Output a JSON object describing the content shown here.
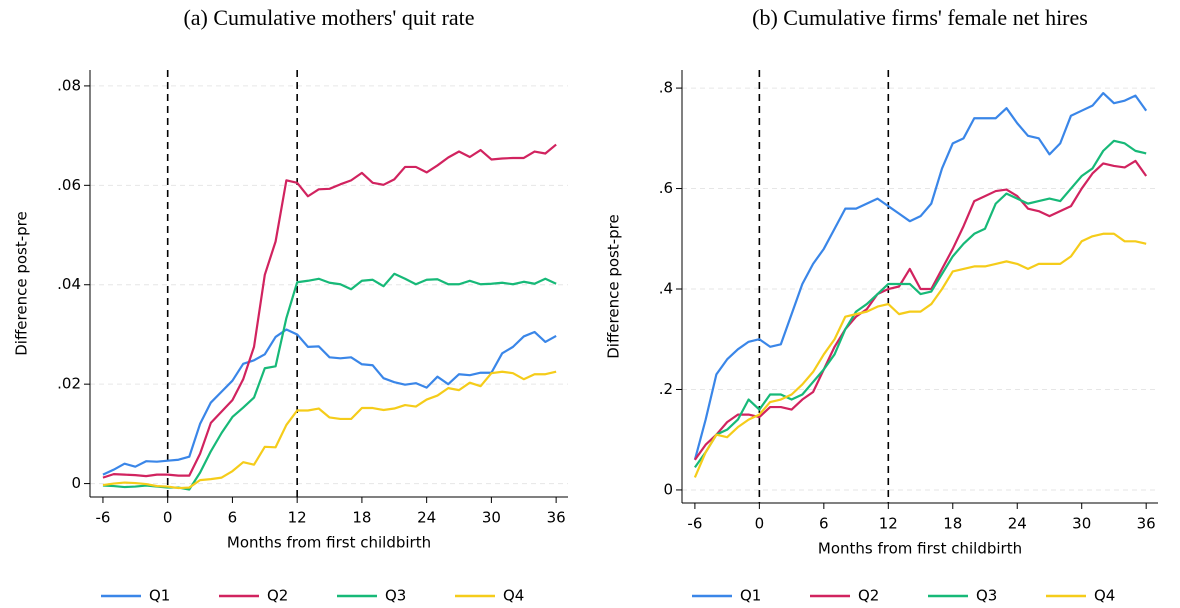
{
  "chart_data": [
    {
      "type": "line",
      "title": "(a) Cumulative mothers' quit rate",
      "x_label": "Months from first childbirth",
      "y_label": "Difference post-pre",
      "x": [
        -6,
        -5,
        -4,
        -3,
        -2,
        -1,
        0,
        1,
        2,
        3,
        4,
        5,
        6,
        7,
        8,
        9,
        10,
        11,
        12,
        13,
        14,
        15,
        16,
        17,
        18,
        19,
        20,
        21,
        22,
        23,
        24,
        25,
        26,
        27,
        28,
        29,
        30,
        31,
        32,
        33,
        34,
        35,
        36
      ],
      "series": [
        {
          "name": "Q1",
          "color": "#3a86e8",
          "values": [
            0.0018,
            0.0028,
            0.004,
            0.0034,
            0.0045,
            0.0044,
            0.0046,
            0.0048,
            0.0054,
            0.012,
            0.0163,
            0.0185,
            0.0207,
            0.0241,
            0.0248,
            0.026,
            0.0295,
            0.031,
            0.03,
            0.0275,
            0.0276,
            0.0254,
            0.0252,
            0.0254,
            0.024,
            0.0238,
            0.0212,
            0.0204,
            0.0199,
            0.0202,
            0.0193,
            0.0215,
            0.02,
            0.022,
            0.0218,
            0.0223,
            0.0223,
            0.0262,
            0.0275,
            0.0296,
            0.0305,
            0.0285,
            0.0297
          ]
        },
        {
          "name": "Q2",
          "color": "#d1235f",
          "values": [
            0.0012,
            0.0019,
            0.0018,
            0.0017,
            0.0015,
            0.0018,
            0.0018,
            0.0016,
            0.0016,
            0.006,
            0.0122,
            0.0145,
            0.0168,
            0.021,
            0.0275,
            0.042,
            0.0487,
            0.061,
            0.0605,
            0.0578,
            0.0592,
            0.0593,
            0.0602,
            0.061,
            0.0625,
            0.0605,
            0.0601,
            0.0612,
            0.0637,
            0.0637,
            0.0626,
            0.064,
            0.0656,
            0.0668,
            0.0657,
            0.0671,
            0.0652,
            0.0654,
            0.0655,
            0.0655,
            0.0668,
            0.0664,
            0.0682
          ]
        },
        {
          "name": "Q3",
          "color": "#17b978",
          "values": [
            -0.0004,
            -0.0005,
            -0.0007,
            -0.0006,
            -0.0004,
            -0.0006,
            -0.0008,
            -0.0008,
            -0.0012,
            0.0022,
            0.0065,
            0.0102,
            0.0134,
            0.0153,
            0.0173,
            0.0232,
            0.0236,
            0.0333,
            0.0405,
            0.0408,
            0.0412,
            0.0404,
            0.0401,
            0.0391,
            0.0408,
            0.041,
            0.0397,
            0.0422,
            0.0412,
            0.0401,
            0.041,
            0.0411,
            0.0401,
            0.0401,
            0.0408,
            0.0401,
            0.0402,
            0.0404,
            0.0401,
            0.0406,
            0.0402,
            0.0412,
            0.0402
          ]
        },
        {
          "name": "Q4",
          "color": "#f5cc1a",
          "values": [
            -0.0003,
            0,
            0.0002,
            0.0001,
            -0.0001,
            -0.0005,
            -0.0006,
            -0.0009,
            -0.0008,
            0.0007,
            0.0009,
            0.0012,
            0.0025,
            0.0043,
            0.0038,
            0.0074,
            0.0073,
            0.0118,
            0.0147,
            0.0147,
            0.0151,
            0.0133,
            0.013,
            0.013,
            0.0152,
            0.0152,
            0.0148,
            0.0151,
            0.0158,
            0.0155,
            0.0169,
            0.0177,
            0.0192,
            0.0188,
            0.0203,
            0.0196,
            0.0222,
            0.0225,
            0.0222,
            0.021,
            0.022,
            0.022,
            0.0225
          ]
        }
      ],
      "xlim": [
        -7.2,
        37.1
      ],
      "xticks": [
        -6,
        0,
        6,
        12,
        18,
        24,
        30,
        36
      ],
      "ylim": [
        -0.0027,
        0.0832
      ],
      "yticks": [
        0,
        {
          "value": 0.02,
          "label": ".02"
        },
        {
          "value": 0.04,
          "label": ".04"
        },
        {
          "value": 0.06,
          "label": ".06"
        },
        {
          "value": 0.08,
          "label": ".08"
        }
      ],
      "vlines": [
        0,
        12
      ],
      "grid": true,
      "legend": "bottom"
    },
    {
      "type": "line",
      "title": "(b) Cumulative firms' female net hires",
      "x_label": "Months from first childbirth",
      "y_label": "Difference post-pre",
      "x": [
        -6,
        -5,
        -4,
        -3,
        -2,
        -1,
        0,
        1,
        2,
        3,
        4,
        5,
        6,
        7,
        8,
        9,
        10,
        11,
        12,
        13,
        14,
        15,
        16,
        17,
        18,
        19,
        20,
        21,
        22,
        23,
        24,
        25,
        26,
        27,
        28,
        29,
        30,
        31,
        32,
        33,
        34,
        35,
        36
      ],
      "series": [
        {
          "name": "Q1",
          "color": "#3a86e8",
          "values": [
            0.06,
            0.14,
            0.23,
            0.26,
            0.28,
            0.295,
            0.3,
            0.285,
            0.29,
            0.35,
            0.41,
            0.45,
            0.48,
            0.52,
            0.56,
            0.56,
            0.57,
            0.58,
            0.565,
            0.55,
            0.535,
            0.545,
            0.57,
            0.64,
            0.69,
            0.7,
            0.74,
            0.74,
            0.74,
            0.76,
            0.73,
            0.705,
            0.7,
            0.668,
            0.69,
            0.745,
            0.755,
            0.765,
            0.79,
            0.77,
            0.775,
            0.785,
            0.755
          ]
        },
        {
          "name": "Q2",
          "color": "#d1235f",
          "values": [
            0.06,
            0.09,
            0.11,
            0.135,
            0.15,
            0.15,
            0.145,
            0.165,
            0.165,
            0.16,
            0.18,
            0.195,
            0.24,
            0.285,
            0.32,
            0.345,
            0.36,
            0.39,
            0.4,
            0.405,
            0.44,
            0.4,
            0.4,
            0.44,
            0.48,
            0.525,
            0.575,
            0.585,
            0.595,
            0.598,
            0.585,
            0.56,
            0.555,
            0.545,
            0.555,
            0.565,
            0.6,
            0.63,
            0.65,
            0.645,
            0.642,
            0.655,
            0.625
          ]
        },
        {
          "name": "Q3",
          "color": "#17b978",
          "values": [
            0.045,
            0.075,
            0.11,
            0.12,
            0.14,
            0.18,
            0.16,
            0.19,
            0.19,
            0.18,
            0.19,
            0.215,
            0.24,
            0.27,
            0.32,
            0.355,
            0.37,
            0.39,
            0.41,
            0.41,
            0.41,
            0.39,
            0.395,
            0.43,
            0.465,
            0.49,
            0.51,
            0.52,
            0.57,
            0.59,
            0.58,
            0.57,
            0.575,
            0.58,
            0.575,
            0.6,
            0.625,
            0.64,
            0.675,
            0.695,
            0.69,
            0.675,
            0.67
          ]
        },
        {
          "name": "Q4",
          "color": "#f5cc1a",
          "values": [
            0.025,
            0.075,
            0.11,
            0.105,
            0.125,
            0.14,
            0.15,
            0.175,
            0.18,
            0.19,
            0.21,
            0.235,
            0.27,
            0.3,
            0.345,
            0.35,
            0.355,
            0.365,
            0.37,
            0.35,
            0.355,
            0.355,
            0.37,
            0.4,
            0.435,
            0.44,
            0.445,
            0.445,
            0.45,
            0.455,
            0.45,
            0.44,
            0.45,
            0.45,
            0.45,
            0.465,
            0.495,
            0.505,
            0.51,
            0.51,
            0.495,
            0.495,
            0.49
          ]
        }
      ],
      "xlim": [
        -7.2,
        37.1
      ],
      "xticks": [
        -6,
        0,
        6,
        12,
        18,
        24,
        30,
        36
      ],
      "ylim": [
        -0.026,
        0.836
      ],
      "yticks": [
        0,
        {
          "value": 0.2,
          "label": ".2"
        },
        {
          "value": 0.4,
          "label": ".4"
        },
        {
          "value": 0.6,
          "label": ".6"
        },
        {
          "value": 0.8,
          "label": ".8"
        }
      ],
      "vlines": [
        0,
        12
      ],
      "grid": true,
      "legend": "bottom"
    }
  ]
}
